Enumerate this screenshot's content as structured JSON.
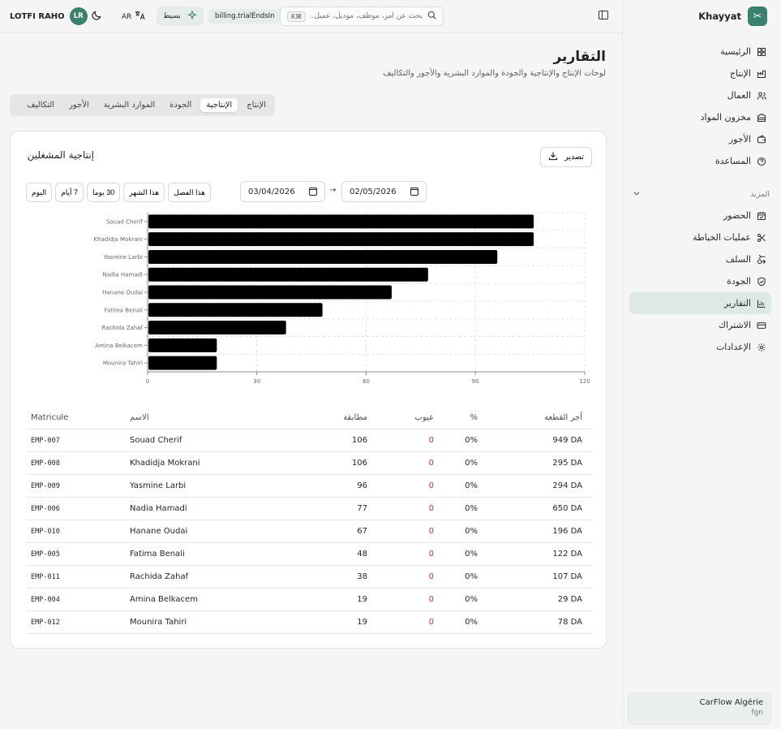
{
  "sidebar": {
    "brand": "Khayyat",
    "nav": [
      {
        "label": "الرئيسية",
        "icon": "dashboard-icon"
      },
      {
        "label": "الإنتاج",
        "icon": "production-icon"
      },
      {
        "label": "العمال",
        "icon": "workers-icon"
      },
      {
        "label": "مخزون المواد",
        "icon": "inventory-icon"
      },
      {
        "label": "الأجور",
        "icon": "wallet-icon"
      },
      {
        "label": "المساعدة",
        "icon": "help-icon"
      }
    ],
    "more_label": "المزيد",
    "more_nav": [
      {
        "label": "الحضور",
        "icon": "calendar-check-icon"
      },
      {
        "label": "عمليات الخياطة",
        "icon": "scissors-icon"
      },
      {
        "label": "السلف",
        "icon": "advance-icon"
      },
      {
        "label": "الجودة",
        "icon": "shield-icon"
      },
      {
        "label": "التقارير",
        "icon": "chart-icon"
      },
      {
        "label": "الاشتراك",
        "icon": "card-icon"
      },
      {
        "label": "الإعدادات",
        "icon": "gear-icon"
      }
    ],
    "active_item": "التقارير",
    "org": {
      "name": "CarFlow Algérie",
      "sub": "fgn"
    }
  },
  "topbar": {
    "user_name": "LOTFI RAHO",
    "user_initials": "LR",
    "lang": "AR",
    "plan": "بسيط",
    "trial": "billing.trialEndsIn",
    "search_placeholder": "بحث عن أمر، موظف، موديل، عميل...",
    "search_shortcut": "⌘K"
  },
  "page": {
    "title": "التقارير",
    "subtitle": "لوحات الإنتاج والإنتاجية والجودة والموارد البشرية والأجور والتكاليف"
  },
  "tabs": [
    "الإنتاج",
    "الإنتاجية",
    "الجودة",
    "الموارد البشرية",
    "الأجور",
    "التكاليف"
  ],
  "active_tab": "الإنتاجية",
  "card": {
    "title": "إنتاجية المشغلين",
    "export_label": "تصدير",
    "range_buttons": [
      "اليوم",
      "7 أيام",
      "30 يوما",
      "هذا الشهر",
      "هذا الفصل"
    ],
    "date_from": "03/04/2026",
    "date_to": "02/05/2026",
    "date_separator": "→"
  },
  "chart_data": {
    "type": "bar",
    "orientation": "horizontal",
    "categories": [
      "Souad Cherif",
      "Khadidja Mokrani",
      "Yasmine Larbi",
      "Nadia Hamadi",
      "Hanane Oudai",
      "Fatima Benali",
      "Rachida Zahaf",
      "Amina Belkacem",
      "Mounira Tahiri"
    ],
    "values": [
      106,
      106,
      96,
      77,
      67,
      48,
      38,
      19,
      19
    ],
    "xlim": [
      0,
      120
    ],
    "xticks": [
      0,
      30,
      60,
      90,
      120
    ],
    "grid": true,
    "bar_color": "#000000"
  },
  "table": {
    "headers": {
      "matricule": "Matricule",
      "name": "الاسم",
      "conform": "مطابقة",
      "defects": "عيوب",
      "pct": "%",
      "pay": "أجر القطعة"
    },
    "rows": [
      {
        "matricule": "EMP-007",
        "name": "Souad Cherif",
        "conform": "106",
        "defects": "0",
        "pct": "0%",
        "pay": "949 DA"
      },
      {
        "matricule": "EMP-008",
        "name": "Khadidja Mokrani",
        "conform": "106",
        "defects": "0",
        "pct": "0%",
        "pay": "295 DA"
      },
      {
        "matricule": "EMP-009",
        "name": "Yasmine Larbi",
        "conform": "96",
        "defects": "0",
        "pct": "0%",
        "pay": "294 DA"
      },
      {
        "matricule": "EMP-006",
        "name": "Nadia Hamadi",
        "conform": "77",
        "defects": "0",
        "pct": "0%",
        "pay": "650 DA"
      },
      {
        "matricule": "EMP-010",
        "name": "Hanane Oudai",
        "conform": "67",
        "defects": "0",
        "pct": "0%",
        "pay": "196 DA"
      },
      {
        "matricule": "EMP-005",
        "name": "Fatima Benali",
        "conform": "48",
        "defects": "0",
        "pct": "0%",
        "pay": "122 DA"
      },
      {
        "matricule": "EMP-011",
        "name": "Rachida Zahaf",
        "conform": "38",
        "defects": "0",
        "pct": "0%",
        "pay": "107 DA"
      },
      {
        "matricule": "EMP-004",
        "name": "Amina Belkacem",
        "conform": "19",
        "defects": "0",
        "pct": "0%",
        "pay": "29 DA"
      },
      {
        "matricule": "EMP-012",
        "name": "Mounira Tahiri",
        "conform": "19",
        "defects": "0",
        "pct": "0%",
        "pay": "78 DA"
      }
    ]
  },
  "colors": {
    "accent": "#3b7f6d",
    "active_bg": "#dce9e4",
    "defect": "#d8283e"
  }
}
